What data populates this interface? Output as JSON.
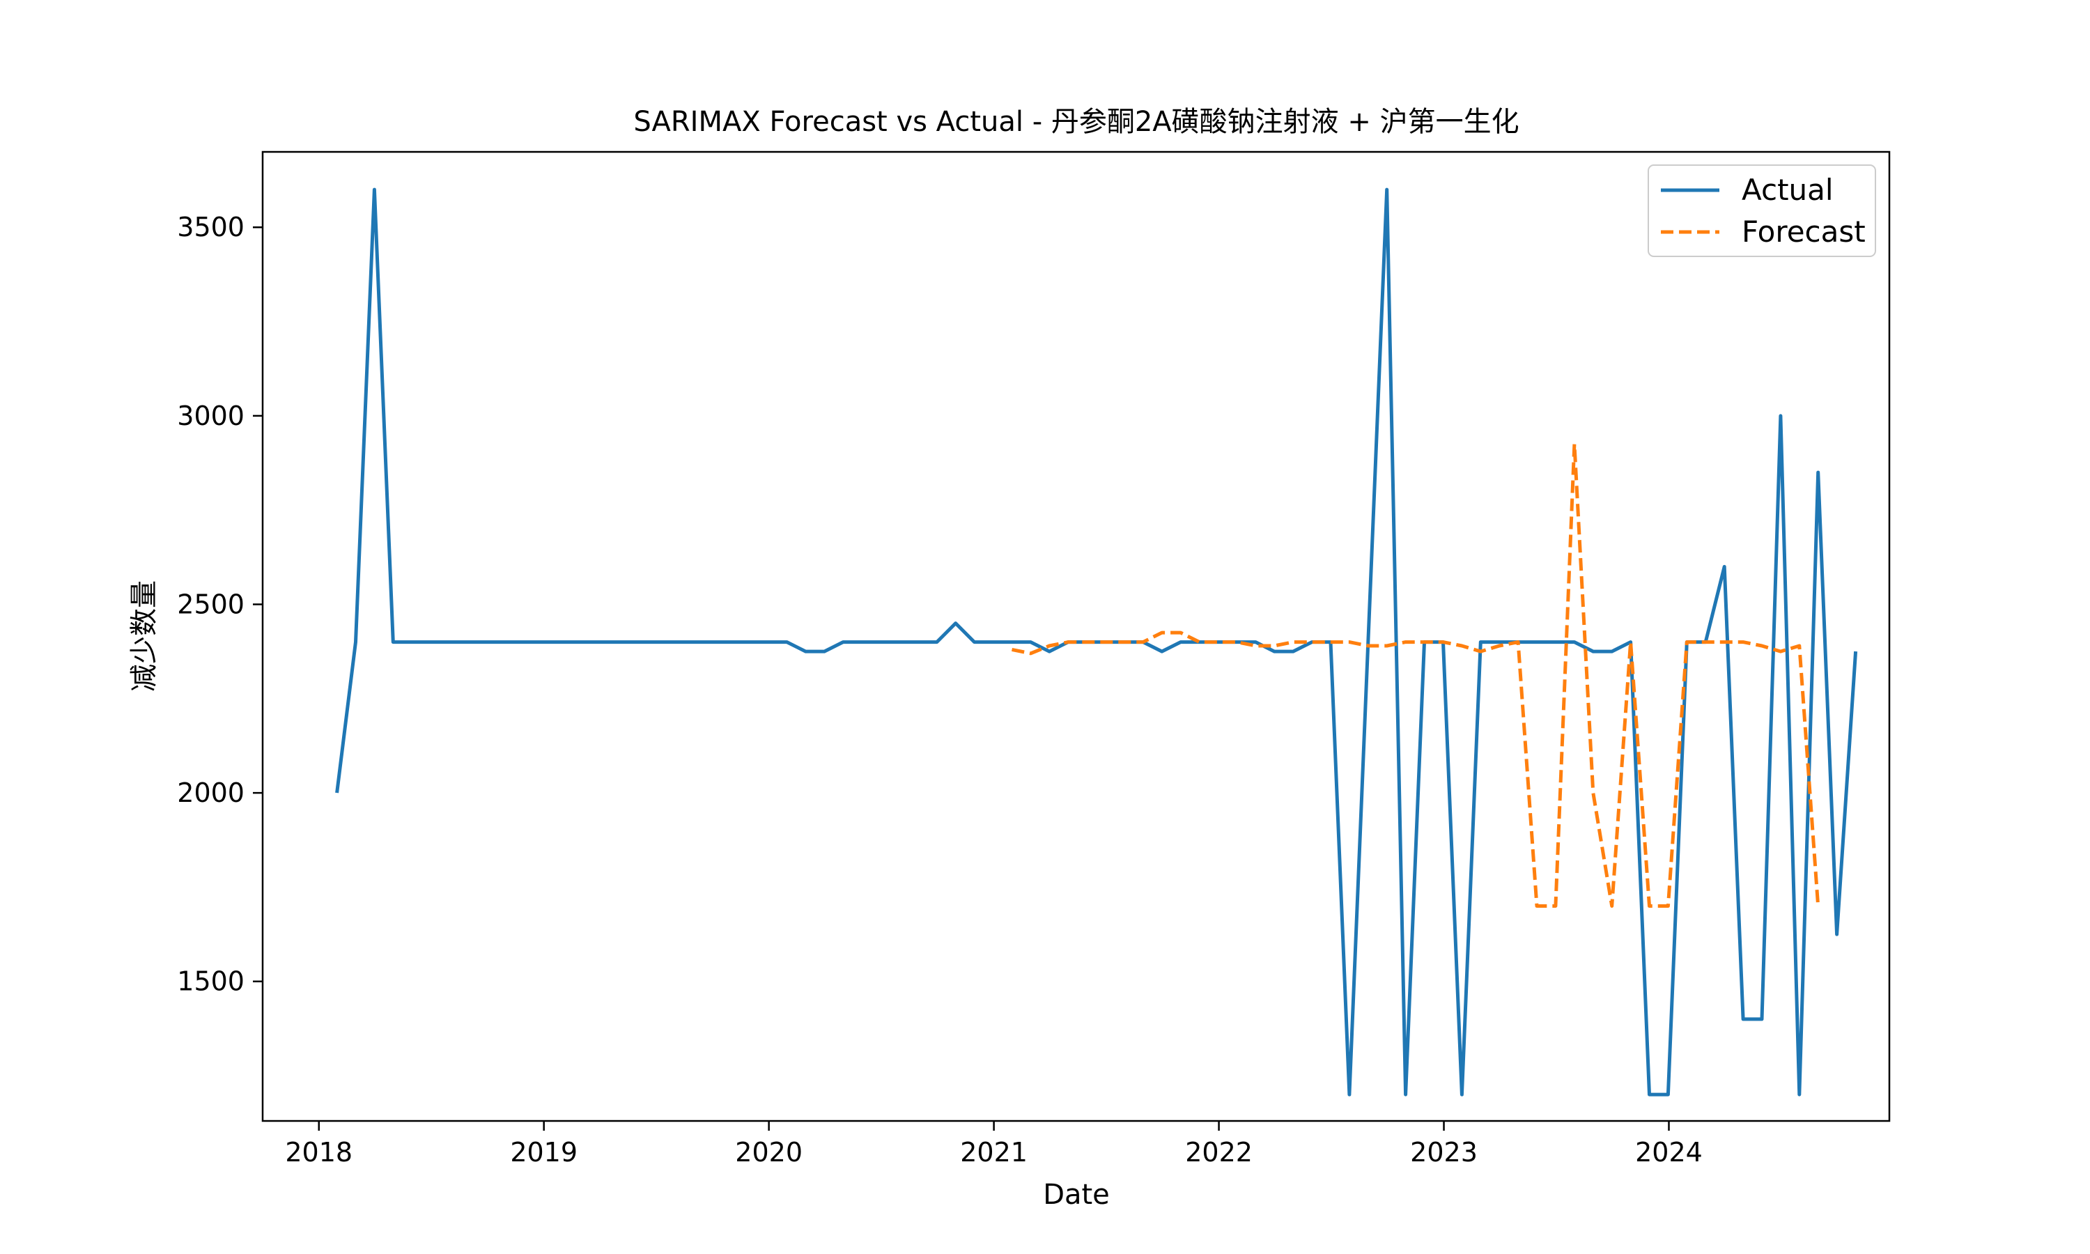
{
  "chart_data": {
    "type": "line",
    "title": "SARIMAX Forecast vs Actual - 丹参酮2A磺酸钠注射液 + 沪第一生化",
    "xlabel": "Date",
    "ylabel": "减少数量",
    "xlim": [
      2017.75,
      2024.98
    ],
    "ylim": [
      1130,
      3700
    ],
    "x_ticks": [
      2018,
      2019,
      2020,
      2021,
      2022,
      2023,
      2024
    ],
    "x_tick_labels": [
      "2018",
      "2019",
      "2020",
      "2021",
      "2022",
      "2023",
      "2024"
    ],
    "y_ticks": [
      1500,
      2000,
      2500,
      3000,
      3500
    ],
    "y_tick_labels": [
      "1500",
      "2000",
      "2500",
      "3000",
      "3500"
    ],
    "legend_position": "top-right",
    "series": [
      {
        "name": "Actual",
        "color": "#1f77b4",
        "style": "solid",
        "start": 2018.08,
        "step": 0.0833333,
        "values": [
          2000,
          2400,
          3600,
          2400,
          2400,
          2400,
          2400,
          2400,
          2400,
          2400,
          2400,
          2400,
          2400,
          2400,
          2400,
          2400,
          2400,
          2400,
          2400,
          2400,
          2400,
          2400,
          2400,
          2400,
          2400,
          2375,
          2375,
          2400,
          2400,
          2400,
          2400,
          2400,
          2400,
          2450,
          2400,
          2400,
          2400,
          2400,
          2375,
          2400,
          2400,
          2400,
          2400,
          2400,
          2375,
          2400,
          2400,
          2400,
          2400,
          2400,
          2375,
          2375,
          2400,
          2400,
          1200,
          2400,
          3600,
          1200,
          2400,
          2400,
          1200,
          2400,
          2400,
          2400,
          2400,
          2400,
          2400,
          2375,
          2375,
          2400,
          1200,
          1200,
          2400,
          2400,
          2600,
          1400,
          1400,
          3000,
          1200,
          2850,
          1625,
          2375
        ]
      },
      {
        "name": "Forecast",
        "color": "#ff7f0e",
        "style": "dashed",
        "start": 2021.08,
        "step": 0.0833333,
        "values": [
          2380,
          2370,
          2390,
          2400,
          2400,
          2400,
          2400,
          2400,
          2425,
          2425,
          2400,
          2400,
          2400,
          2390,
          2390,
          2400,
          2400,
          2400,
          2400,
          2390,
          2390,
          2400,
          2400,
          2400,
          2390,
          2375,
          2390,
          2400,
          1700,
          1700,
          2925,
          2000,
          1700,
          2400,
          1700,
          1700,
          2400,
          2400,
          2400,
          2400,
          2390,
          2375,
          2390,
          1700
        ]
      }
    ]
  }
}
